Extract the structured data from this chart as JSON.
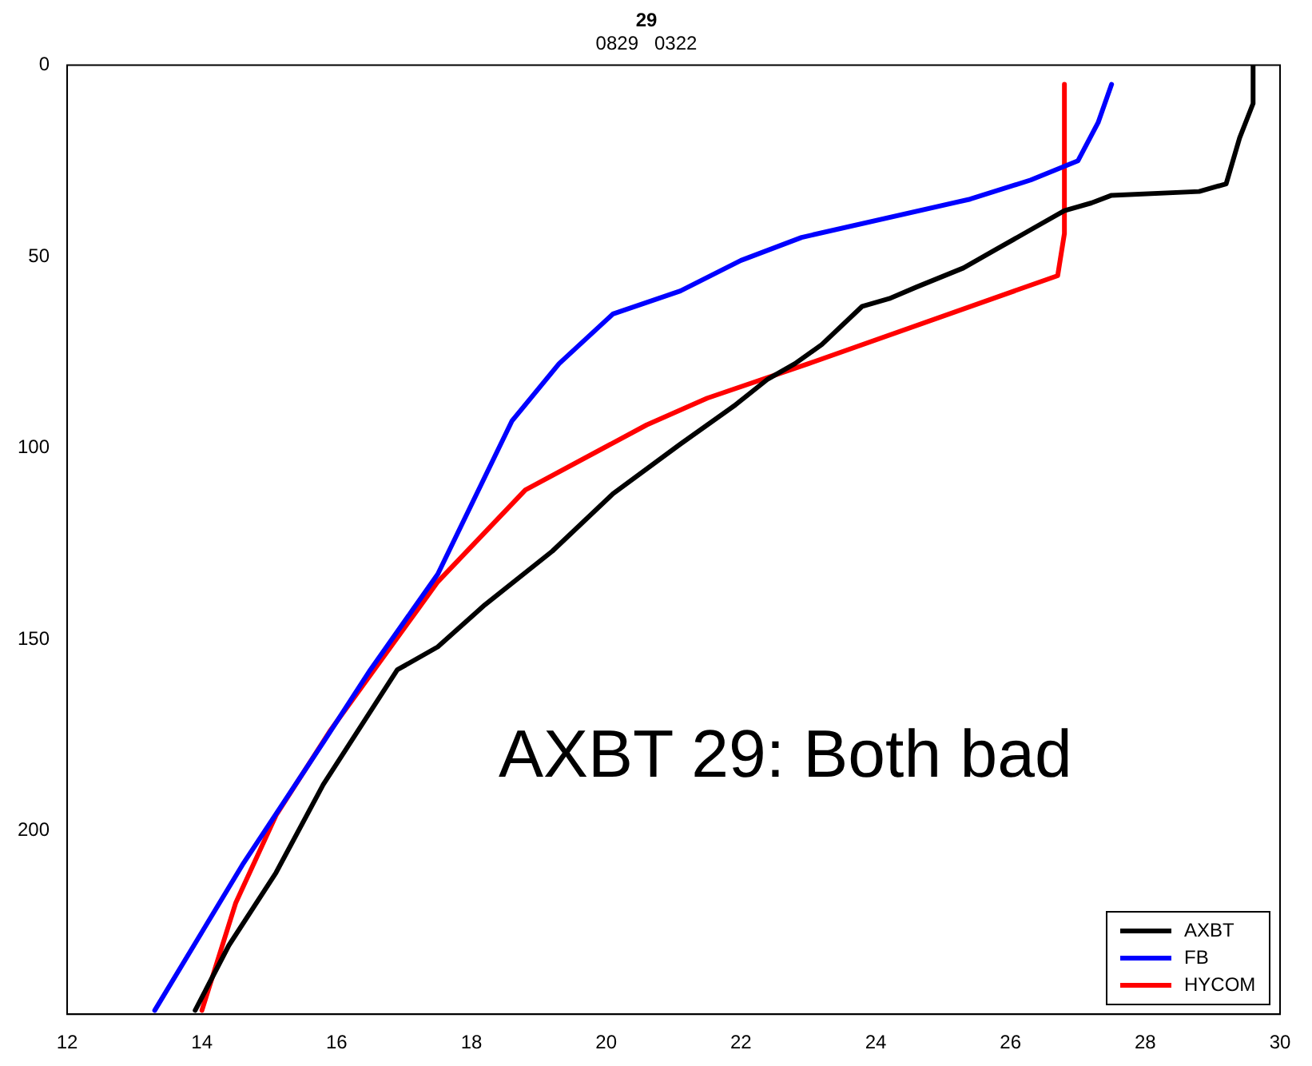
{
  "chart_data": {
    "type": "line",
    "title": "29",
    "subtitle": "0829   0322",
    "xlim": [
      12,
      30
    ],
    "xticks": [
      12,
      14,
      16,
      18,
      20,
      22,
      24,
      26,
      28,
      30
    ],
    "ylim": [
      248,
      0
    ],
    "yticks": [
      0,
      50,
      100,
      150,
      200
    ],
    "grid": false,
    "legend": "bottom right",
    "marker": "none",
    "line_style": "solid",
    "annotations": [
      "AXBT 29: Both bad"
    ],
    "series": [
      {
        "name": "AXBT",
        "color": "#000000",
        "x": [
          29.6,
          29.6,
          29.4,
          29.2,
          28.8,
          27.5,
          27.2,
          26.8,
          26.3,
          25.8,
          25.3,
          24.6,
          24.2,
          23.8,
          23.2,
          22.8,
          22.4,
          21.9,
          21.1,
          20.1,
          19.2,
          18.2,
          17.5,
          16.9,
          15.8,
          15.1,
          14.4,
          13.9
        ],
        "values": [
          0,
          10,
          19,
          31,
          33,
          34,
          36,
          38,
          43,
          48,
          53,
          58,
          61,
          63,
          73,
          78,
          82,
          89,
          99,
          112,
          127,
          141,
          152,
          158,
          188,
          211,
          230,
          247
        ]
      },
      {
        "name": "FB",
        "color": "#0000ff",
        "x": [
          27.5,
          27.3,
          27.0,
          26.3,
          25.4,
          22.9,
          22.0,
          21.1,
          20.1,
          19.3,
          18.6,
          17.5,
          16.5,
          15.8,
          14.6,
          13.3
        ],
        "values": [
          5,
          15,
          25,
          30,
          35,
          45,
          51,
          59,
          65,
          78,
          93,
          133,
          158,
          177,
          209,
          247
        ]
      },
      {
        "name": "HYCOM",
        "color": "#ff0000",
        "x": [
          26.8,
          26.8,
          26.7,
          23.0,
          21.5,
          20.6,
          18.8,
          17.5,
          15.9,
          15.1,
          14.5,
          14.0
        ],
        "values": [
          5,
          44,
          55,
          78,
          87,
          94,
          111,
          135,
          174,
          196,
          219,
          247
        ]
      }
    ]
  }
}
